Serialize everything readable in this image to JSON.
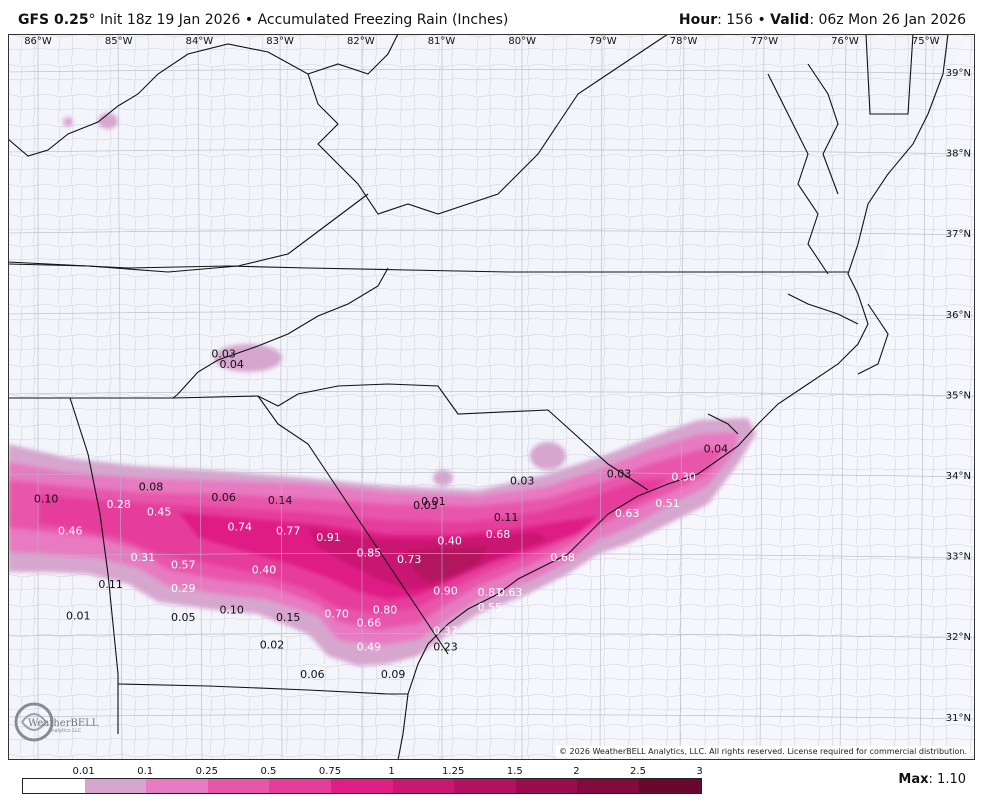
{
  "header": {
    "model": "GFS 0.25",
    "degree": "°",
    "init": "Init 18z 19 Jan 2026",
    "bullet": "•",
    "product": "Accumulated Freezing Rain (Inches)",
    "hour_label": "Hour",
    "hour_value": ": 156",
    "valid_label": "Valid",
    "valid_value": ": 06z Mon 26 Jan 2026"
  },
  "longitude_ticks": [
    "86°W",
    "85°W",
    "84°W",
    "83°W",
    "82°W",
    "81°W",
    "80°W",
    "79°W",
    "78°W",
    "77°W",
    "76°W",
    "75°W"
  ],
  "latitude_ticks": [
    "39°N",
    "38°N",
    "37°N",
    "36°N",
    "35°N",
    "34°N",
    "33°N",
    "32°N",
    "31°N"
  ],
  "point_values": [
    {
      "text": "0.03",
      "lon": -83.7,
      "lat": 35.46
    },
    {
      "text": "0.04",
      "lon": -83.6,
      "lat": 35.33
    },
    {
      "text": "0.04",
      "lon": -77.6,
      "lat": 34.28
    },
    {
      "text": "0.30",
      "lon": -78.0,
      "lat": 33.93
    },
    {
      "text": "0.51",
      "lon": -78.2,
      "lat": 33.6
    },
    {
      "text": "0.63",
      "lon": -78.7,
      "lat": 33.48
    },
    {
      "text": "0.03",
      "lon": -78.8,
      "lat": 33.97
    },
    {
      "text": "0.03",
      "lon": -80.0,
      "lat": 33.88
    },
    {
      "text": "0.11",
      "lon": -80.2,
      "lat": 33.43
    },
    {
      "text": "0.01",
      "lon": -81.1,
      "lat": 33.63
    },
    {
      "text": "0.03",
      "lon": -81.2,
      "lat": 33.58
    },
    {
      "text": "0.68",
      "lon": -80.3,
      "lat": 33.22
    },
    {
      "text": "0.68",
      "lon": -79.5,
      "lat": 32.93
    },
    {
      "text": "0.40",
      "lon": -80.9,
      "lat": 33.14
    },
    {
      "text": "0.73",
      "lon": -81.4,
      "lat": 32.91
    },
    {
      "text": "0.85",
      "lon": -81.9,
      "lat": 32.99
    },
    {
      "text": "0.91",
      "lon": -82.4,
      "lat": 33.18
    },
    {
      "text": "0.77",
      "lon": -82.9,
      "lat": 33.26
    },
    {
      "text": "0.14",
      "lon": -83.0,
      "lat": 33.64
    },
    {
      "text": "0.74",
      "lon": -83.5,
      "lat": 33.31
    },
    {
      "text": "0.06",
      "lon": -83.7,
      "lat": 33.68
    },
    {
      "text": "0.45",
      "lon": -84.5,
      "lat": 33.5
    },
    {
      "text": "0.08",
      "lon": -84.6,
      "lat": 33.81
    },
    {
      "text": "0.28",
      "lon": -85.0,
      "lat": 33.59
    },
    {
      "text": "0.10",
      "lon": -85.9,
      "lat": 33.66
    },
    {
      "text": "0.46",
      "lon": -85.6,
      "lat": 33.26
    },
    {
      "text": "0.31",
      "lon": -84.7,
      "lat": 32.93
    },
    {
      "text": "0.57",
      "lon": -84.2,
      "lat": 32.84
    },
    {
      "text": "0.40",
      "lon": -83.2,
      "lat": 32.78
    },
    {
      "text": "0.29",
      "lon": -84.2,
      "lat": 32.55
    },
    {
      "text": "0.11",
      "lon": -85.1,
      "lat": 32.6
    },
    {
      "text": "0.90",
      "lon": -80.95,
      "lat": 32.52
    },
    {
      "text": "0.81",
      "lon": -80.4,
      "lat": 32.5
    },
    {
      "text": "0.63",
      "lon": -80.15,
      "lat": 32.5
    },
    {
      "text": "0.55",
      "lon": -80.4,
      "lat": 32.31
    },
    {
      "text": "0.80",
      "lon": -81.7,
      "lat": 32.28
    },
    {
      "text": "0.70",
      "lon": -82.3,
      "lat": 32.23
    },
    {
      "text": "0.66",
      "lon": -81.9,
      "lat": 32.12
    },
    {
      "text": "0.37",
      "lon": -80.95,
      "lat": 32.02
    },
    {
      "text": "0.23",
      "lon": -80.95,
      "lat": 31.82
    },
    {
      "text": "0.49",
      "lon": -81.9,
      "lat": 31.82
    },
    {
      "text": "0.10",
      "lon": -83.6,
      "lat": 32.28
    },
    {
      "text": "0.15",
      "lon": -82.9,
      "lat": 32.19
    },
    {
      "text": "0.05",
      "lon": -84.2,
      "lat": 32.19
    },
    {
      "text": "0.01",
      "lon": -85.5,
      "lat": 32.21
    },
    {
      "text": "0.02",
      "lon": -83.1,
      "lat": 31.85
    },
    {
      "text": "0.06",
      "lon": -82.6,
      "lat": 31.48
    },
    {
      "text": "0.09",
      "lon": -81.6,
      "lat": 31.48
    }
  ],
  "legend": {
    "labels": [
      "0.01",
      "0.1",
      "0.25",
      "0.5",
      "0.75",
      "1",
      "1.25",
      "1.5",
      "2",
      "2.5",
      "3"
    ],
    "colors": [
      "#ffffff",
      "#d7a6cf",
      "#e77ac1",
      "#e856ab",
      "#e63d9c",
      "#df1f86",
      "#c91872",
      "#b2125f",
      "#9a0d4d",
      "#820a3d",
      "#6b062f"
    ]
  },
  "max": {
    "label": "Max",
    "value": ": 1.10"
  },
  "copyright": "© 2026 WeatherBELL Analytics, LLC. All rights reserved. License required for commercial distribution.",
  "logo_text": "WeatherBELL",
  "logo_sub": "Analytics LLC"
}
